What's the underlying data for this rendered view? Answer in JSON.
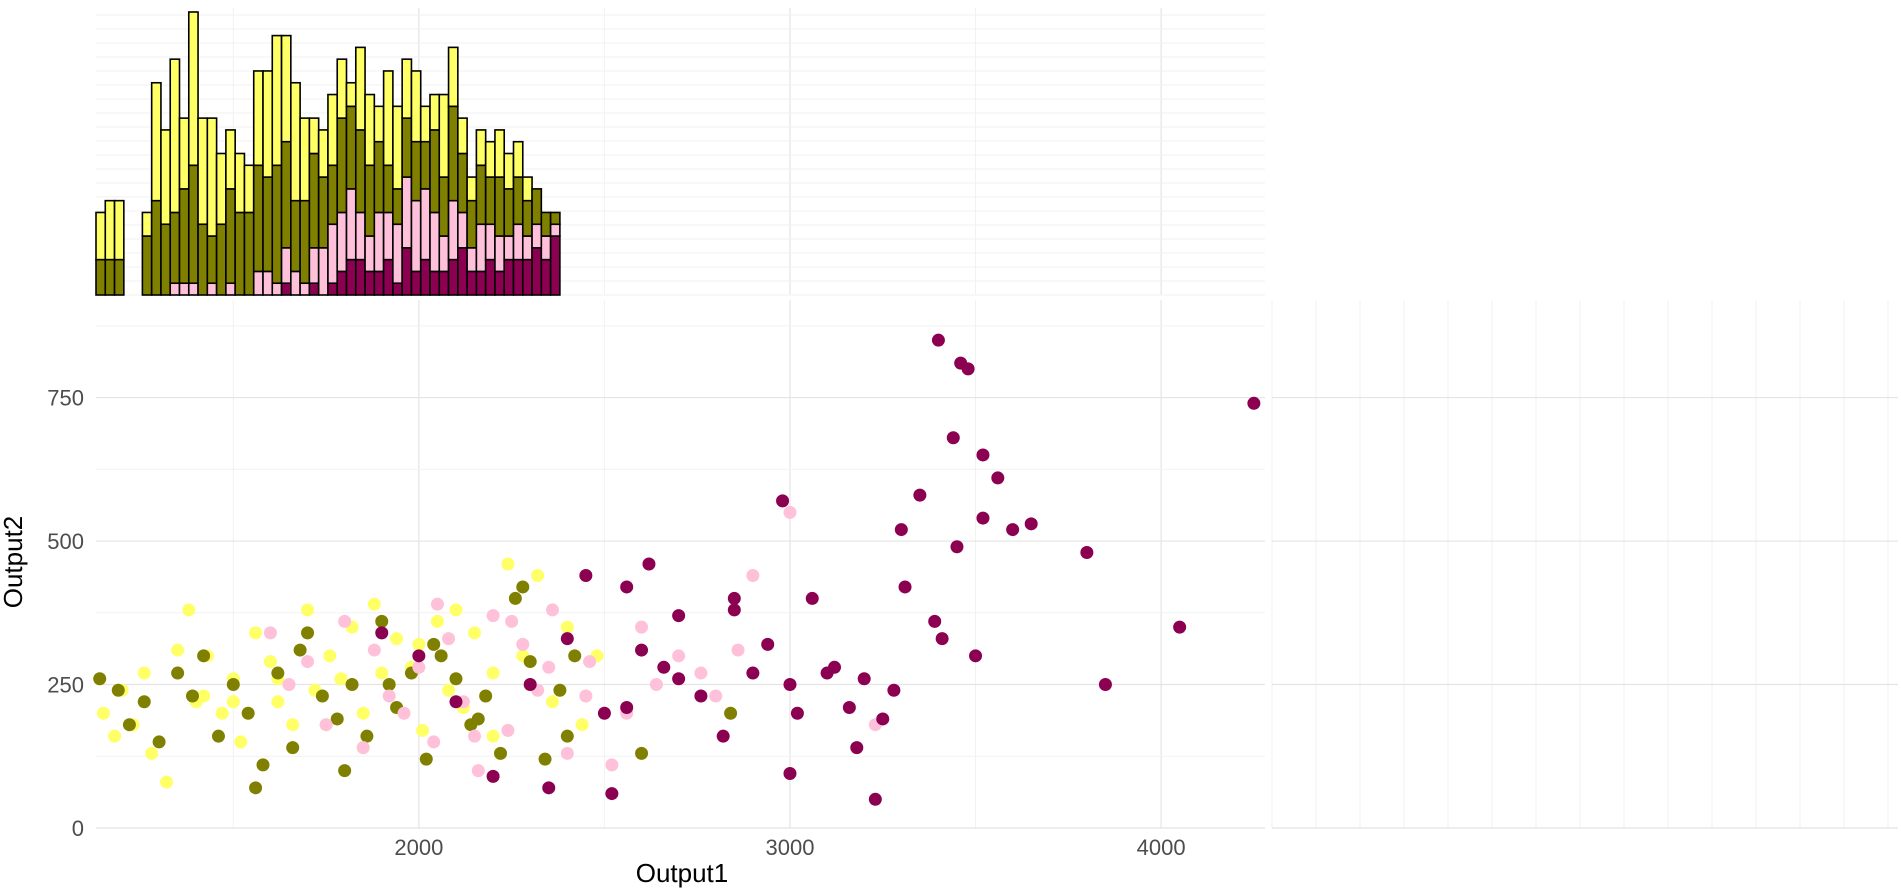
{
  "chart_data": {
    "type": "scatter",
    "xlabel": "Output1",
    "ylabel": "Output2",
    "xlim": [
      1130,
      4280
    ],
    "ylim": [
      0,
      920
    ],
    "x_ticks": [
      2000,
      3000,
      4000
    ],
    "y_ticks": [
      0,
      250,
      500,
      750
    ],
    "grid": true,
    "legend": "none",
    "marginal_histograms": "top (Output1) and right (Output2), stacked by group",
    "group_colors": [
      "#ffff66",
      "#808000",
      "#ffc0d9",
      "#8b0050"
    ],
    "top_histogram": {
      "x_start": 1130,
      "bin_width": 25,
      "counts": [
        [
          4,
          5,
          5,
          0,
          0,
          2,
          10,
          8,
          13,
          6,
          13,
          9,
          10,
          6,
          5,
          5,
          4,
          8,
          9,
          11,
          9,
          10,
          7,
          3,
          4,
          6,
          5,
          2,
          7,
          6,
          3,
          8,
          7,
          5,
          6,
          3,
          3,
          7,
          5,
          3,
          2,
          3,
          3,
          4,
          3,
          3,
          2,
          0,
          0,
          0
        ],
        [
          3,
          3,
          3,
          0,
          0,
          5,
          8,
          6,
          6,
          8,
          10,
          6,
          4,
          6,
          8,
          7,
          7,
          9,
          8,
          10,
          9,
          6,
          7,
          8,
          6,
          5,
          8,
          7,
          7,
          6,
          6,
          4,
          3,
          5,
          5,
          4,
          7,
          5,
          8,
          5,
          4,
          5,
          4,
          5,
          4,
          4,
          3,
          3,
          2,
          1
        ],
        [
          0,
          0,
          0,
          0,
          0,
          0,
          0,
          0,
          1,
          1,
          1,
          0,
          1,
          0,
          1,
          0,
          0,
          2,
          2,
          1,
          3,
          2,
          1,
          3,
          4,
          5,
          5,
          6,
          4,
          3,
          5,
          4,
          5,
          6,
          6,
          6,
          5,
          3,
          5,
          3,
          2,
          4,
          3,
          3,
          2,
          3,
          2,
          2,
          2,
          1
        ],
        [
          0,
          0,
          0,
          0,
          0,
          0,
          0,
          0,
          0,
          0,
          0,
          0,
          0,
          0,
          0,
          0,
          0,
          0,
          0,
          0,
          1,
          0,
          0,
          1,
          0,
          1,
          2,
          3,
          3,
          2,
          2,
          3,
          1,
          4,
          2,
          3,
          2,
          2,
          3,
          4,
          2,
          2,
          3,
          2,
          3,
          3,
          3,
          4,
          3,
          5
        ]
      ]
    },
    "right_histogram": {
      "y_start": 0,
      "bin_width": 10,
      "counts": [
        [
          0,
          0,
          0,
          0,
          0,
          0,
          0,
          0,
          0,
          0,
          0,
          0,
          0,
          0,
          0,
          0,
          0,
          0,
          0,
          0,
          0,
          0,
          0,
          0,
          0,
          0,
          0,
          0,
          0,
          0,
          0,
          0,
          0,
          0,
          0,
          0,
          0,
          0,
          0,
          0,
          0,
          0,
          0,
          0,
          0,
          0,
          0,
          0,
          0,
          0,
          0,
          0,
          0,
          0,
          0,
          0,
          0,
          0,
          0,
          0
        ],
        [
          0,
          0,
          0,
          0,
          0,
          0,
          0,
          0,
          0,
          0,
          0,
          0,
          0,
          0,
          0,
          0,
          0,
          0,
          0,
          0,
          0,
          0,
          0,
          0,
          0,
          0,
          0,
          0,
          0,
          0,
          0,
          0,
          0,
          0,
          0,
          0,
          0,
          0,
          0,
          0,
          0,
          0,
          0,
          0,
          0,
          0,
          0,
          0,
          0,
          0,
          0,
          0,
          0,
          0,
          0,
          0,
          0,
          0,
          0,
          0
        ],
        [
          0,
          0,
          0,
          0,
          0,
          0,
          0,
          0,
          0,
          0,
          0,
          0,
          0,
          0,
          0,
          0,
          0,
          0,
          0,
          0,
          0,
          0,
          0,
          0,
          0,
          0,
          0,
          0,
          0,
          0,
          0,
          0,
          0,
          0,
          0,
          0,
          0,
          0,
          0,
          0,
          0,
          0,
          0,
          0,
          0,
          0,
          0,
          0,
          0,
          0,
          0,
          0,
          0,
          0,
          0,
          0,
          0,
          0,
          0,
          0
        ],
        [
          0,
          0,
          0,
          0,
          0,
          0,
          0,
          0,
          0,
          0,
          0,
          0,
          0,
          0,
          0,
          0,
          0,
          0,
          0,
          0,
          0,
          0,
          0,
          0,
          0,
          0,
          0,
          0,
          0,
          0,
          0,
          0,
          0,
          0,
          0,
          0,
          0,
          0,
          0,
          0,
          0,
          0,
          0,
          0,
          0,
          0,
          0,
          0,
          0,
          0,
          0,
          0,
          0,
          0,
          0,
          0,
          0,
          0,
          0,
          0
        ]
      ]
    },
    "series": [
      {
        "name": "",
        "color": "#ffff66",
        "x": [
          1150,
          1180,
          1200,
          1230,
          1260,
          1280,
          1320,
          1350,
          1380,
          1400,
          1430,
          1470,
          1500,
          1520,
          1560,
          1600,
          1620,
          1660,
          1700,
          1720,
          1760,
          1790,
          1820,
          1850,
          1880,
          1900,
          1940,
          1980,
          2010,
          2050,
          2080,
          2120,
          2150,
          2200,
          2240,
          2280,
          2320,
          2360,
          2400,
          2440,
          2480,
          1420,
          1620,
          1850,
          2100,
          2300,
          1500,
          1750,
          2000,
          2200
        ],
        "y": [
          200,
          160,
          240,
          180,
          270,
          130,
          80,
          310,
          380,
          220,
          300,
          200,
          260,
          150,
          340,
          290,
          220,
          180,
          380,
          240,
          300,
          260,
          350,
          200,
          390,
          270,
          330,
          280,
          170,
          360,
          240,
          210,
          340,
          270,
          460,
          300,
          440,
          220,
          350,
          180,
          300,
          230,
          260,
          140,
          380,
          250,
          220,
          180,
          320,
          160
        ]
      },
      {
        "name": "",
        "color": "#808000",
        "x": [
          1140,
          1190,
          1220,
          1260,
          1300,
          1350,
          1390,
          1420,
          1460,
          1500,
          1540,
          1580,
          1620,
          1660,
          1700,
          1740,
          1780,
          1820,
          1860,
          1900,
          1940,
          1980,
          2020,
          2060,
          2100,
          2140,
          2180,
          2220,
          2260,
          2300,
          2340,
          2380,
          2420,
          2600,
          2840,
          1560,
          1680,
          1800,
          1920,
          2040,
          2160,
          2280,
          2400
        ],
        "y": [
          260,
          240,
          180,
          220,
          150,
          270,
          230,
          300,
          160,
          250,
          200,
          110,
          270,
          140,
          340,
          230,
          190,
          250,
          160,
          360,
          210,
          270,
          120,
          300,
          260,
          180,
          230,
          130,
          400,
          290,
          120,
          240,
          300,
          130,
          200,
          70,
          310,
          100,
          250,
          320,
          190,
          420,
          160
        ]
      },
      {
        "name": "",
        "color": "#ffc0d9",
        "x": [
          1600,
          1650,
          1700,
          1750,
          1800,
          1850,
          1880,
          1920,
          1960,
          2000,
          2040,
          2080,
          2120,
          2160,
          2200,
          2240,
          2280,
          2320,
          2360,
          2400,
          2460,
          2520,
          2560,
          2600,
          2640,
          2700,
          2760,
          2800,
          2860,
          2900,
          3000,
          3230,
          2050,
          2150,
          2250,
          2350,
          2450
        ],
        "y": [
          340,
          250,
          290,
          180,
          360,
          140,
          310,
          230,
          200,
          280,
          150,
          330,
          220,
          100,
          370,
          170,
          320,
          240,
          380,
          130,
          290,
          110,
          200,
          350,
          250,
          300,
          270,
          230,
          310,
          440,
          550,
          180,
          390,
          160,
          360,
          280,
          230
        ]
      },
      {
        "name": "",
        "color": "#8b0050",
        "x": [
          1900,
          2000,
          2100,
          2200,
          2300,
          2350,
          2400,
          2450,
          2500,
          2520,
          2560,
          2600,
          2620,
          2660,
          2700,
          2760,
          2820,
          2850,
          2900,
          2940,
          2980,
          3000,
          3020,
          3060,
          3100,
          3120,
          3180,
          3200,
          3230,
          3250,
          3280,
          3310,
          3350,
          3390,
          3410,
          3440,
          3460,
          3500,
          3520,
          3560,
          3600,
          3650,
          3800,
          3850,
          4050,
          4250,
          3400,
          3480,
          3520,
          3160,
          3000,
          2850,
          2700,
          2560,
          3300,
          3450
        ],
        "y": [
          340,
          300,
          220,
          90,
          250,
          70,
          330,
          440,
          200,
          60,
          420,
          310,
          460,
          280,
          370,
          230,
          160,
          400,
          270,
          320,
          570,
          250,
          200,
          400,
          270,
          280,
          140,
          260,
          50,
          190,
          240,
          420,
          580,
          360,
          330,
          680,
          810,
          300,
          650,
          610,
          520,
          530,
          480,
          250,
          350,
          740,
          850,
          800,
          540,
          210,
          95,
          380,
          260,
          210,
          520,
          490
        ]
      }
    ]
  }
}
